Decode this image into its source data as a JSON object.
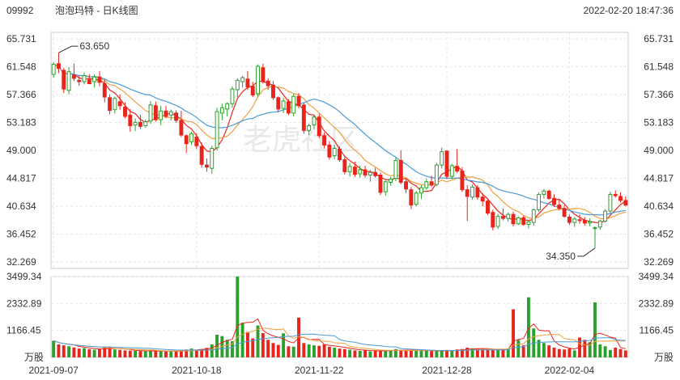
{
  "header": {
    "code": "09992",
    "name": "泡泡玛特 - 日K线图",
    "datetime": "2022-02-20 18:47:36"
  },
  "watermark": "老虎社区",
  "chart_data": {
    "type": "candlestick",
    "title": "泡泡玛特 - 日K线图",
    "price_axis": {
      "ticks": [
        65.731,
        61.548,
        57.366,
        53.183,
        49.0,
        44.817,
        40.634,
        36.452,
        32.269
      ],
      "labels": [
        "65.731",
        "61.548",
        "57.366",
        "53.183",
        "49.000",
        "44.817",
        "40.634",
        "36.452",
        "32.269"
      ],
      "range": [
        32.269,
        65.731
      ]
    },
    "volume_axis": {
      "ticks": [
        3499.34,
        2332.89,
        1166.45
      ],
      "labels": [
        "3499.34",
        "2332.89",
        "1166.45"
      ],
      "unit": "万股",
      "range": [
        0,
        3499.34
      ]
    },
    "x_labels": [
      "2021-09-07",
      "2021-10-18",
      "2021-11-22",
      "2021-12-28",
      "2022-02-04"
    ],
    "x_label_index": [
      0,
      28,
      52,
      77,
      101
    ],
    "annotations": [
      {
        "label": "63.650",
        "kind": "high",
        "bar_index": 1
      },
      {
        "label": "34.350",
        "kind": "low",
        "bar_index": 106
      }
    ],
    "colors": {
      "up": "#2ca02c",
      "down": "#e8251c",
      "ma_short": "#e8251c",
      "ma_mid": "#f0a040",
      "ma_long": "#4a9bd8"
    },
    "ohlc": [
      [
        60.4,
        62.2,
        59.9,
        61.9
      ],
      [
        62.0,
        63.65,
        60.6,
        61.3
      ],
      [
        61.0,
        61.4,
        57.6,
        58.2
      ],
      [
        58.0,
        61.5,
        57.4,
        60.8
      ],
      [
        60.3,
        62.0,
        59.4,
        59.8
      ],
      [
        59.5,
        60.2,
        58.7,
        59.3
      ],
      [
        59.3,
        60.7,
        58.9,
        60.2
      ],
      [
        59.6,
        60.4,
        58.9,
        59.0
      ],
      [
        59.3,
        60.4,
        58.4,
        60.0
      ],
      [
        60.0,
        60.9,
        58.6,
        59.2
      ],
      [
        59.0,
        59.6,
        56.2,
        57.0
      ],
      [
        56.9,
        57.4,
        54.4,
        55.0
      ],
      [
        55.1,
        57.1,
        54.5,
        56.8
      ],
      [
        56.3,
        57.4,
        55.1,
        55.7
      ],
      [
        55.5,
        56.2,
        53.8,
        54.1
      ],
      [
        54.3,
        55.2,
        51.8,
        52.7
      ],
      [
        52.8,
        53.8,
        51.9,
        53.2
      ],
      [
        53.2,
        54.3,
        52.2,
        52.6
      ],
      [
        52.7,
        53.6,
        52.4,
        53.3
      ],
      [
        53.4,
        56.4,
        53.0,
        55.8
      ],
      [
        55.7,
        56.3,
        53.3,
        53.6
      ],
      [
        53.6,
        55.7,
        52.8,
        54.9
      ],
      [
        54.9,
        55.7,
        53.8,
        54.1
      ],
      [
        54.3,
        55.1,
        53.5,
        54.8
      ],
      [
        54.6,
        55.0,
        53.1,
        53.5
      ],
      [
        53.5,
        54.9,
        51.0,
        51.3
      ],
      [
        51.2,
        51.4,
        48.6,
        50.0
      ],
      [
        50.3,
        51.8,
        49.8,
        51.5
      ],
      [
        51.0,
        51.6,
        49.2,
        49.7
      ],
      [
        49.6,
        50.2,
        46.4,
        46.9
      ],
      [
        46.8,
        47.8,
        45.8,
        46.5
      ],
      [
        46.3,
        49.7,
        45.5,
        49.3
      ],
      [
        49.4,
        55.4,
        49.0,
        54.8
      ],
      [
        54.6,
        56.0,
        53.5,
        55.4
      ],
      [
        55.2,
        56.2,
        54.1,
        56.0
      ],
      [
        56.0,
        58.6,
        55.4,
        58.2
      ],
      [
        58.1,
        59.8,
        57.0,
        59.5
      ],
      [
        59.3,
        60.2,
        58.4,
        59.9
      ],
      [
        59.7,
        60.9,
        58.1,
        58.5
      ],
      [
        58.6,
        59.3,
        57.0,
        57.3
      ],
      [
        57.5,
        61.9,
        57.1,
        61.6
      ],
      [
        61.4,
        62.0,
        59.0,
        59.3
      ],
      [
        59.4,
        59.8,
        58.1,
        58.7
      ],
      [
        58.8,
        59.4,
        56.6,
        56.9
      ],
      [
        56.9,
        57.1,
        54.7,
        55.2
      ],
      [
        55.3,
        56.9,
        54.6,
        56.4
      ],
      [
        56.3,
        56.7,
        54.3,
        54.6
      ],
      [
        54.6,
        57.5,
        54.1,
        57.1
      ],
      [
        57.1,
        57.6,
        55.3,
        55.7
      ],
      [
        55.8,
        56.1,
        51.5,
        52.0
      ],
      [
        52.0,
        53.0,
        51.3,
        52.7
      ],
      [
        52.8,
        54.3,
        52.1,
        54.0
      ],
      [
        54.0,
        54.5,
        50.8,
        51.2
      ],
      [
        51.2,
        51.7,
        49.3,
        49.8
      ],
      [
        49.8,
        50.4,
        47.6,
        48.0
      ],
      [
        48.2,
        49.8,
        47.7,
        49.3
      ],
      [
        49.2,
        49.6,
        47.3,
        47.6
      ],
      [
        47.6,
        48.0,
        45.4,
        45.8
      ],
      [
        45.8,
        47.1,
        45.1,
        46.6
      ],
      [
        46.5,
        47.3,
        45.0,
        45.4
      ],
      [
        45.5,
        46.7,
        44.9,
        46.1
      ],
      [
        46.1,
        46.7,
        44.9,
        45.3
      ],
      [
        45.3,
        46.1,
        44.3,
        45.7
      ],
      [
        45.7,
        46.4,
        44.9,
        45.2
      ],
      [
        45.3,
        45.7,
        42.3,
        42.7
      ],
      [
        42.8,
        44.5,
        42.2,
        44.3
      ],
      [
        44.2,
        45.0,
        43.7,
        44.7
      ],
      [
        44.8,
        47.9,
        44.4,
        47.5
      ],
      [
        47.5,
        49.0,
        43.9,
        44.2
      ],
      [
        44.3,
        44.7,
        42.6,
        43.2
      ],
      [
        43.1,
        43.5,
        40.2,
        40.8
      ],
      [
        40.9,
        42.9,
        40.6,
        42.6
      ],
      [
        42.6,
        43.8,
        41.7,
        43.4
      ],
      [
        43.4,
        44.7,
        43.1,
        44.3
      ],
      [
        44.3,
        45.2,
        43.5,
        43.8
      ],
      [
        43.9,
        47.1,
        43.6,
        46.8
      ],
      [
        46.8,
        49.4,
        46.3,
        48.8
      ],
      [
        48.9,
        49.0,
        44.7,
        45.1
      ],
      [
        45.1,
        47.0,
        44.7,
        46.7
      ],
      [
        46.6,
        49.2,
        45.6,
        45.9
      ],
      [
        45.9,
        46.5,
        42.8,
        43.1
      ],
      [
        43.1,
        43.8,
        38.4,
        42.1
      ],
      [
        42.0,
        43.9,
        41.6,
        43.5
      ],
      [
        43.4,
        43.8,
        41.6,
        42.0
      ],
      [
        42.0,
        42.6,
        40.6,
        41.4
      ],
      [
        41.4,
        41.8,
        39.3,
        39.6
      ],
      [
        39.7,
        40.1,
        37.0,
        37.5
      ],
      [
        37.6,
        39.5,
        37.2,
        39.1
      ],
      [
        39.1,
        40.3,
        38.5,
        38.8
      ],
      [
        38.8,
        39.7,
        38.3,
        39.4
      ],
      [
        39.4,
        39.8,
        37.6,
        38.0
      ],
      [
        38.0,
        39.1,
        37.8,
        38.9
      ],
      [
        38.9,
        39.2,
        37.7,
        37.9
      ],
      [
        37.9,
        38.6,
        37.3,
        38.3
      ],
      [
        38.2,
        40.3,
        37.7,
        40.1
      ],
      [
        40.1,
        42.7,
        39.8,
        42.4
      ],
      [
        42.4,
        43.2,
        41.8,
        42.9
      ],
      [
        42.9,
        43.1,
        41.6,
        41.8
      ],
      [
        41.8,
        42.4,
        40.5,
        40.9
      ],
      [
        40.8,
        41.6,
        40.0,
        40.3
      ],
      [
        40.3,
        40.8,
        38.9,
        39.1
      ],
      [
        39.0,
        39.4,
        37.8,
        38.2
      ],
      [
        38.2,
        39.0,
        37.5,
        38.7
      ],
      [
        38.6,
        39.4,
        38.0,
        38.5
      ],
      [
        38.5,
        39.0,
        37.7,
        38.1
      ],
      [
        38.1,
        38.8,
        37.6,
        38.3
      ],
      [
        37.4,
        37.6,
        34.35,
        37.4
      ],
      [
        37.5,
        38.6,
        37.1,
        38.4
      ],
      [
        38.4,
        40.2,
        38.2,
        39.9
      ],
      [
        39.9,
        42.8,
        39.6,
        42.4
      ],
      [
        42.4,
        43.0,
        41.9,
        42.2
      ],
      [
        42.1,
        42.7,
        41.2,
        41.5
      ],
      [
        41.5,
        42.1,
        40.6,
        40.8
      ]
    ],
    "volume": [
      720,
      560,
      520,
      480,
      430,
      380,
      400,
      350,
      330,
      360,
      420,
      460,
      340,
      320,
      300,
      290,
      280,
      270,
      260,
      300,
      290,
      270,
      250,
      260,
      270,
      300,
      340,
      380,
      320,
      360,
      410,
      560,
      980,
      920,
      760,
      700,
      3499,
      1500,
      1100,
      820,
      1380,
      1050,
      760,
      620,
      540,
      1040,
      480,
      460,
      1720,
      620,
      560,
      520,
      500,
      560,
      460,
      420,
      380,
      360,
      330,
      300,
      280,
      300,
      260,
      290,
      270,
      310,
      300,
      360,
      280,
      300,
      320,
      290,
      280,
      300,
      270,
      260,
      300,
      320,
      310,
      340,
      360,
      420,
      390,
      380,
      360,
      340,
      330,
      310,
      360,
      380,
      2080,
      760,
      520,
      2600,
      1250,
      760,
      620,
      520,
      420,
      360,
      340,
      380,
      300,
      860,
      760,
      660,
      2380,
      560,
      480,
      320,
      420,
      360,
      300
    ]
  }
}
